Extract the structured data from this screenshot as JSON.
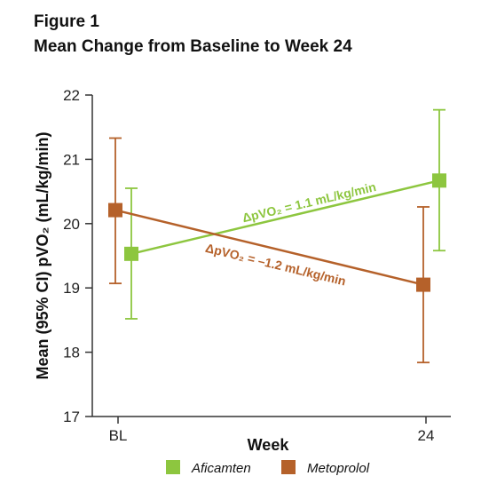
{
  "figure": {
    "label": "Figure 1",
    "title": "Mean Change from Baseline to Week 24"
  },
  "chart_data": {
    "type": "line",
    "xlabel": "Week",
    "ylabel": "Mean (95% CI) pVO₂ (mL/kg/min)",
    "categories": [
      "BL",
      "24"
    ],
    "ylim": [
      17,
      22
    ],
    "yticks": [
      "17",
      "18",
      "19",
      "20",
      "21",
      "22"
    ],
    "grid": false,
    "legend_position": "bottom",
    "series": [
      {
        "name": "Aficamten",
        "color": "#8DC63F",
        "values": [
          19.53,
          20.67
        ],
        "ci_low": [
          18.52,
          19.58
        ],
        "ci_high": [
          20.55,
          21.77
        ],
        "annotation": "ΔpVO₂ = 1.1 mL/kg/min"
      },
      {
        "name": "Metoprolol",
        "color": "#B5612A",
        "values": [
          20.21,
          19.05
        ],
        "ci_low": [
          19.07,
          17.84
        ],
        "ci_high": [
          21.33,
          20.26
        ],
        "annotation": "ΔpVO₂ = –1.2 mL/kg/min"
      }
    ]
  }
}
